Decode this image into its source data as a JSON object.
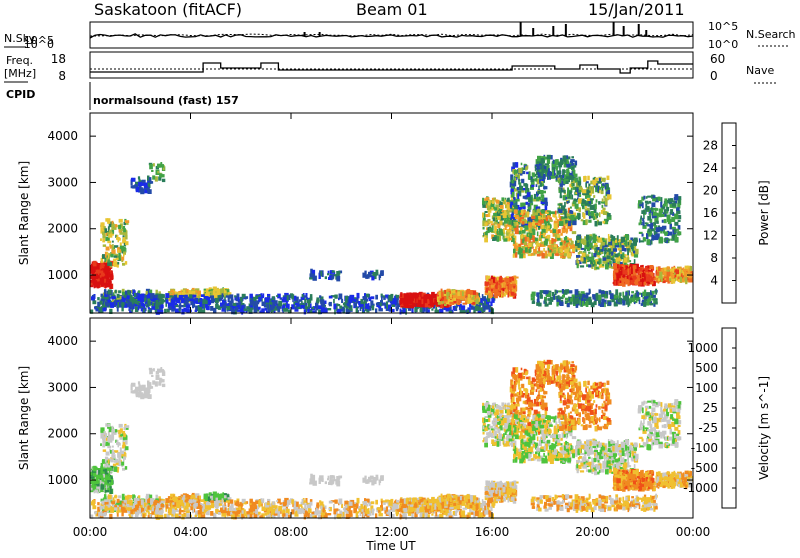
{
  "header": {
    "station": "Saskatoon (fitACF)",
    "beam": "Beam 01",
    "date": "15/Jan/2011"
  },
  "left_labels": {
    "nsky": "N.Sky",
    "freq_top": "Freq.",
    "freq_unit": "[MHz]",
    "cpid": "CPID"
  },
  "right_labels": {
    "nsearch": "N.Search",
    "nave": "Nave"
  },
  "cpid_text": "normalsound (fast) 157",
  "noise_ticks_left": [
    "10^5",
    "10^0"
  ],
  "noise_ticks_right": [
    "10^5",
    "10^0"
  ],
  "freq_ticks_left": [
    "18",
    "8"
  ],
  "nave_ticks_right": [
    "60",
    "0"
  ],
  "time_ticks": [
    "00:00",
    "04:00",
    "08:00",
    "12:00",
    "16:00",
    "20:00",
    "00:00"
  ],
  "x_title": "Time UT",
  "range_ticks": [
    "1000",
    "2000",
    "3000",
    "4000"
  ],
  "y_title": "Slant Range [km]",
  "power_scale": {
    "title": "Power [dB]",
    "ticks": [
      "4",
      "8",
      "12",
      "16",
      "20",
      "24",
      "28"
    ],
    "colors": [
      "#1a2be8",
      "#234aa8",
      "#2a7d5a",
      "#41a246",
      "#a8b83c",
      "#e8c533",
      "#f09a2a",
      "#ee6a22",
      "#e83a1c",
      "#d81010"
    ]
  },
  "velocity_scale": {
    "title": "Velocity [m s^-1]",
    "ticks": [
      "1000",
      "500",
      "100",
      "25",
      "-25",
      "-100",
      "-500",
      "-1000"
    ],
    "colors": [
      "#1a3ca8",
      "#2c5bb4",
      "#2c8a4c",
      "#4ec43c",
      "#c8c8c8",
      "#f0c030",
      "#f08a20",
      "#f05018",
      "#e01010"
    ]
  },
  "chart_data": [
    {
      "type": "heatmap",
      "title": "Power [dB]",
      "xlabel": "Time UT",
      "ylabel": "Slant Range [km]",
      "xlim": [
        "00:00",
        "24:00"
      ],
      "ylim": [
        180,
        4500
      ],
      "grid": false,
      "features": [
        {
          "time": "00:00",
          "range_km": 1000,
          "power_db": 28
        },
        {
          "time": "00:30",
          "range_km": 1500,
          "power_db": 16
        },
        {
          "time": "01:00",
          "range_km": 2000,
          "power_db": 8
        },
        {
          "time": "02:00",
          "range_km": 2950,
          "power_db": 8
        },
        {
          "time": "03:30",
          "range_km": 550,
          "power_db": 16
        },
        {
          "time": "05:00",
          "range_km": 600,
          "power_db": 12
        },
        {
          "time": "13:30",
          "range_km": 450,
          "power_db": 28
        },
        {
          "time": "16:00",
          "range_km": 750,
          "power_db": 24
        },
        {
          "time": "16:30",
          "range_km": 2100,
          "power_db": 16
        },
        {
          "time": "17:30",
          "range_km": 3000,
          "power_db": 12
        },
        {
          "time": "18:00",
          "range_km": 1900,
          "power_db": 20
        },
        {
          "time": "20:00",
          "range_km": 1400,
          "power_db": 12
        },
        {
          "time": "21:30",
          "range_km": 1000,
          "power_db": 24
        },
        {
          "time": "23:30",
          "range_km": 950,
          "power_db": 20
        }
      ]
    },
    {
      "type": "heatmap",
      "title": "Velocity [m s^-1]",
      "xlabel": "Time UT",
      "ylabel": "Slant Range [km]",
      "xlim": [
        "00:00",
        "24:00"
      ],
      "ylim": [
        180,
        4500
      ],
      "grid": false,
      "features": [
        {
          "time": "00:00",
          "range_km": 1000,
          "velocity": 100
        },
        {
          "time": "01:00",
          "range_km": 1800,
          "velocity": 0
        },
        {
          "time": "02:00",
          "range_km": 2950,
          "velocity": 0
        },
        {
          "time": "04:30",
          "range_km": 600,
          "velocity": 100
        },
        {
          "time": "13:00",
          "range_km": 500,
          "velocity": -100
        },
        {
          "time": "16:30",
          "range_km": 2000,
          "velocity": 0
        },
        {
          "time": "17:30",
          "range_km": 3200,
          "velocity": -500
        },
        {
          "time": "19:00",
          "range_km": 2500,
          "velocity": -500
        },
        {
          "time": "20:30",
          "range_km": 1500,
          "velocity": 0
        },
        {
          "time": "22:00",
          "range_km": 1000,
          "velocity": -100
        }
      ]
    },
    {
      "type": "line",
      "title": "N.Sky / N.Search",
      "xlim": [
        "00:00",
        "24:00"
      ]
    },
    {
      "type": "line",
      "title": "Freq. / Nave",
      "xlim": [
        "00:00",
        "24:00"
      ],
      "freq_ylim": [
        8,
        18
      ],
      "nave_ylim": [
        0,
        60
      ]
    }
  ]
}
